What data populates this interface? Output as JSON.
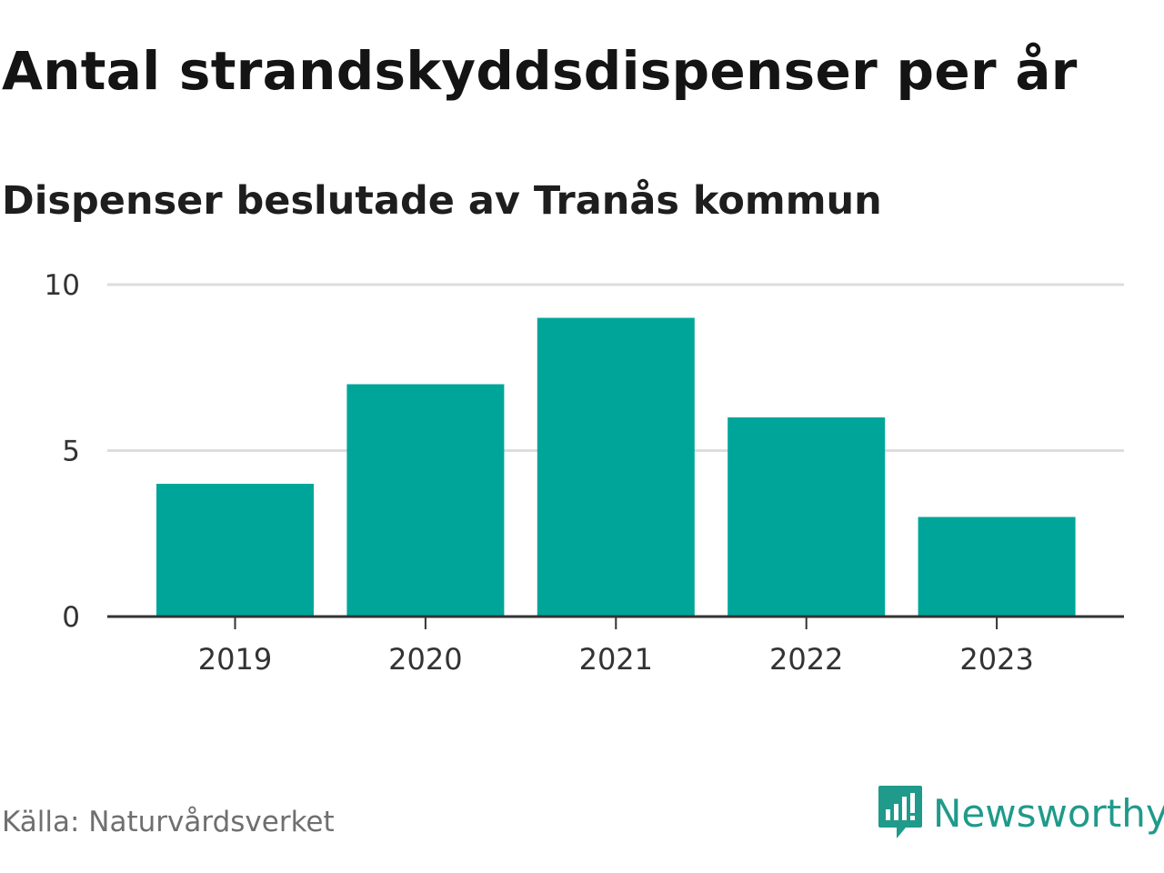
{
  "header": {
    "title": "Antal strandskyddsdispenser per år",
    "subtitle": "Dispenser beslutade av Tranås kommun"
  },
  "footer": {
    "source": "Källa: Naturvårdsverket",
    "brand": "Newsworthy"
  },
  "colors": {
    "bar": "#00a59a",
    "grid": "#dddddd",
    "axis": "#333333",
    "brand": "#1f9a8b"
  },
  "chart_data": {
    "type": "bar",
    "title": "Antal strandskyddsdispenser per år",
    "subtitle": "Dispenser beslutade av Tranås kommun",
    "categories": [
      "2019",
      "2020",
      "2021",
      "2022",
      "2023"
    ],
    "values": [
      4,
      7,
      9,
      6,
      3
    ],
    "xlabel": "",
    "ylabel": "",
    "ylim": [
      0,
      10
    ],
    "yticks": [
      0,
      5,
      10
    ],
    "grid": true,
    "legend": "none"
  }
}
